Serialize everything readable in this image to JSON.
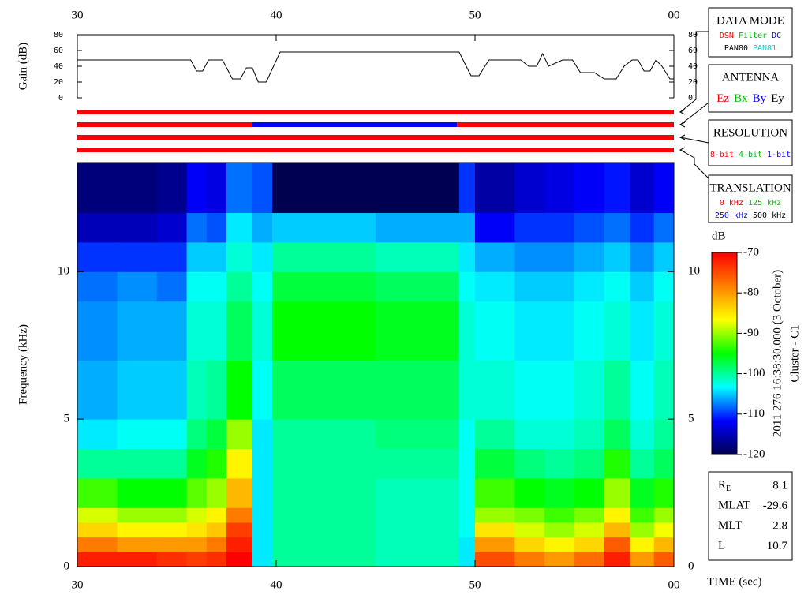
{
  "chart_data": [
    {
      "type": "line",
      "ylabel": "Gain (dB)",
      "color": "#000000",
      "x": [
        30.0,
        35.7,
        36.0,
        36.3,
        36.6,
        37.3,
        37.8,
        38.2,
        38.5,
        38.8,
        39.1,
        39.5,
        40.2,
        49.2,
        49.8,
        50.2,
        50.7,
        52.3,
        52.7,
        53.1,
        53.4,
        53.7,
        54.4,
        54.9,
        55.3,
        56.0,
        56.5,
        57.1,
        57.5,
        57.9,
        58.2,
        58.5,
        58.8,
        59.1,
        59.4,
        59.8,
        60.0
      ],
      "values": [
        48,
        48,
        34,
        34,
        48,
        48,
        24,
        24,
        38,
        38,
        20,
        20,
        58,
        58,
        28,
        28,
        48,
        48,
        40,
        40,
        56,
        40,
        48,
        48,
        32,
        32,
        24,
        24,
        40,
        48,
        48,
        34,
        34,
        48,
        40,
        24,
        24
      ],
      "xlim": [
        30,
        60
      ],
      "xticks": [
        30,
        40,
        50,
        {
          "value": 60,
          "label": "00"
        }
      ],
      "ylim": [
        0,
        80
      ],
      "yticks": [
        0,
        20,
        40,
        60,
        80
      ]
    },
    {
      "type": "timeline",
      "xlim": [
        30,
        60
      ],
      "rows": [
        {
          "segments": [
            {
              "start": 30,
              "end": 60,
              "color": "#ff0000"
            }
          ]
        },
        {
          "segments": [
            {
              "start": 30,
              "end": 38.8,
              "color": "#ff0000"
            },
            {
              "start": 38.8,
              "end": 49.1,
              "color": "#0000ff"
            },
            {
              "start": 49.1,
              "end": 60,
              "color": "#ff0000"
            }
          ]
        },
        {
          "segments": [
            {
              "start": 30,
              "end": 60,
              "color": "#ff0000"
            }
          ]
        },
        {
          "segments": [
            {
              "start": 30,
              "end": 60,
              "color": "#ff0000"
            }
          ]
        }
      ]
    },
    {
      "type": "heatmap",
      "xlabel": "TIME (sec)",
      "ylabel": "Frequency (kHz)",
      "xlim": [
        30,
        60
      ],
      "xticks": [
        30,
        40,
        50,
        {
          "value": 60,
          "label": "00"
        }
      ],
      "ylim": [
        0,
        13.7
      ],
      "yticks": [
        0,
        5,
        10
      ],
      "xbins": [
        30,
        32,
        34,
        35.5,
        36.5,
        37.5,
        38.8,
        39.8,
        45,
        49.2,
        50,
        52,
        53.5,
        55,
        56.5,
        57.8,
        59,
        60
      ],
      "ybins": [
        0,
        0.5,
        1,
        1.5,
        2,
        3,
        4,
        5,
        7,
        9,
        10,
        11,
        12,
        13.7
      ],
      "values": [
        [
          -72,
          -78,
          -84,
          -88,
          -93,
          -100,
          -104,
          -106,
          -107,
          -108,
          -110,
          -115,
          -118
        ],
        [
          -72,
          -80,
          -86,
          -90,
          -95,
          -100,
          -103,
          -105,
          -106,
          -107,
          -110,
          -115,
          -118
        ],
        [
          -73,
          -80,
          -86,
          -90,
          -95,
          -100,
          -103,
          -105,
          -106,
          -108,
          -110,
          -114,
          -117
        ],
        [
          -74,
          -80,
          -85,
          -88,
          -92,
          -96,
          -99,
          -101,
          -102,
          -103,
          -105,
          -108,
          -112
        ],
        [
          -73,
          -78,
          -83,
          -86,
          -90,
          -94,
          -97,
          -100,
          -102,
          -103,
          -105,
          -109,
          -113
        ],
        [
          -70,
          -72,
          -74,
          -78,
          -82,
          -86,
          -90,
          -95,
          -98,
          -100,
          -102,
          -104,
          -108
        ],
        [
          -104,
          -104,
          -104,
          -104,
          -104,
          -104,
          -104,
          -103,
          -102,
          -103,
          -104,
          -106,
          -109
        ],
        [
          -100,
          -100,
          -100,
          -100,
          -100,
          -100,
          -100,
          -98,
          -95,
          -97,
          -100,
          -105,
          -120
        ],
        [
          -101,
          -101,
          -101,
          -101,
          -101,
          -100,
          -99,
          -98,
          -96,
          -98,
          -101,
          -106,
          -120
        ],
        [
          -104,
          -104,
          -103,
          -103,
          -103,
          -103,
          -103,
          -102,
          -102,
          -103,
          -104,
          -106,
          -110
        ],
        [
          -75,
          -80,
          -85,
          -90,
          -93,
          -97,
          -100,
          -102,
          -103,
          -104,
          -106,
          -112,
          -116
        ],
        [
          -78,
          -84,
          -88,
          -91,
          -95,
          -99,
          -102,
          -103,
          -104,
          -105,
          -107,
          -110,
          -114
        ],
        [
          -80,
          -86,
          -90,
          -93,
          -96,
          -100,
          -102,
          -103,
          -104,
          -105,
          -107,
          -110,
          -113
        ],
        [
          -77,
          -84,
          -88,
          -91,
          -95,
          -99,
          -101,
          -102,
          -103,
          -104,
          -106,
          -109,
          -112
        ],
        [
          -72,
          -76,
          -82,
          -86,
          -90,
          -94,
          -98,
          -100,
          -102,
          -103,
          -105,
          -108,
          -111
        ],
        [
          -80,
          -86,
          -90,
          -93,
          -96,
          -100,
          -102,
          -103,
          -104,
          -105,
          -107,
          -110,
          -114
        ],
        [
          -76,
          -82,
          -87,
          -90,
          -94,
          -98,
          -100,
          -101,
          -102,
          -103,
          -105,
          -108,
          -112
        ]
      ],
      "colorbar": {
        "label": "dB",
        "zlim": [
          -120,
          -70
        ],
        "zticks": [
          -120,
          -110,
          -100,
          -90,
          -80,
          -70
        ],
        "colors": [
          "#000050",
          "#0000ff",
          "#00ffff",
          "#00ff00",
          "#ffff00",
          "#ff8000",
          "#ff0000"
        ]
      },
      "annotations": [
        "2011 276 16:38:30.000 (3 October)",
        "Cluster - C1"
      ]
    }
  ],
  "legend_boxes": [
    {
      "title": "DATA MODE",
      "lines": [
        [
          {
            "text": "DSN",
            "color": "#ff0000"
          },
          {
            "text": "Filter",
            "color": "#00c000"
          },
          {
            "text": "DC",
            "color": "#0000ff"
          }
        ],
        [
          {
            "text": "PAN80",
            "color": "#000000"
          },
          {
            "text": "PAN81",
            "color": "#00d0d0"
          }
        ]
      ]
    },
    {
      "title": "ANTENNA",
      "lines": [
        [
          {
            "text": "Ez",
            "color": "#ff0000"
          },
          {
            "text": "Bx",
            "color": "#00c000"
          },
          {
            "text": "By",
            "color": "#0000ff"
          },
          {
            "text": "Ey",
            "color": "#000000"
          }
        ]
      ]
    },
    {
      "title": "RESOLUTION",
      "lines": [
        [
          {
            "text": "8-bit",
            "color": "#ff0000"
          },
          {
            "text": "4-bit",
            "color": "#00c000"
          },
          {
            "text": "1-bit",
            "color": "#0000ff"
          }
        ]
      ]
    },
    {
      "title": "TRANSLATION",
      "lines": [
        [
          {
            "text": "0 kHz",
            "color": "#ff0000"
          },
          {
            "text": "125 kHz",
            "color": "#00c000"
          }
        ],
        [
          {
            "text": "250 kHz",
            "color": "#0000ff"
          },
          {
            "text": "500 kHz",
            "color": "#000000"
          }
        ]
      ]
    }
  ],
  "info": [
    {
      "label": "R",
      "subscript": "E",
      "value": 8.1
    },
    {
      "label": "MLAT",
      "value": -29.6
    },
    {
      "label": "MLT",
      "value": 2.8
    },
    {
      "label": "L",
      "value": 10.7
    }
  ]
}
